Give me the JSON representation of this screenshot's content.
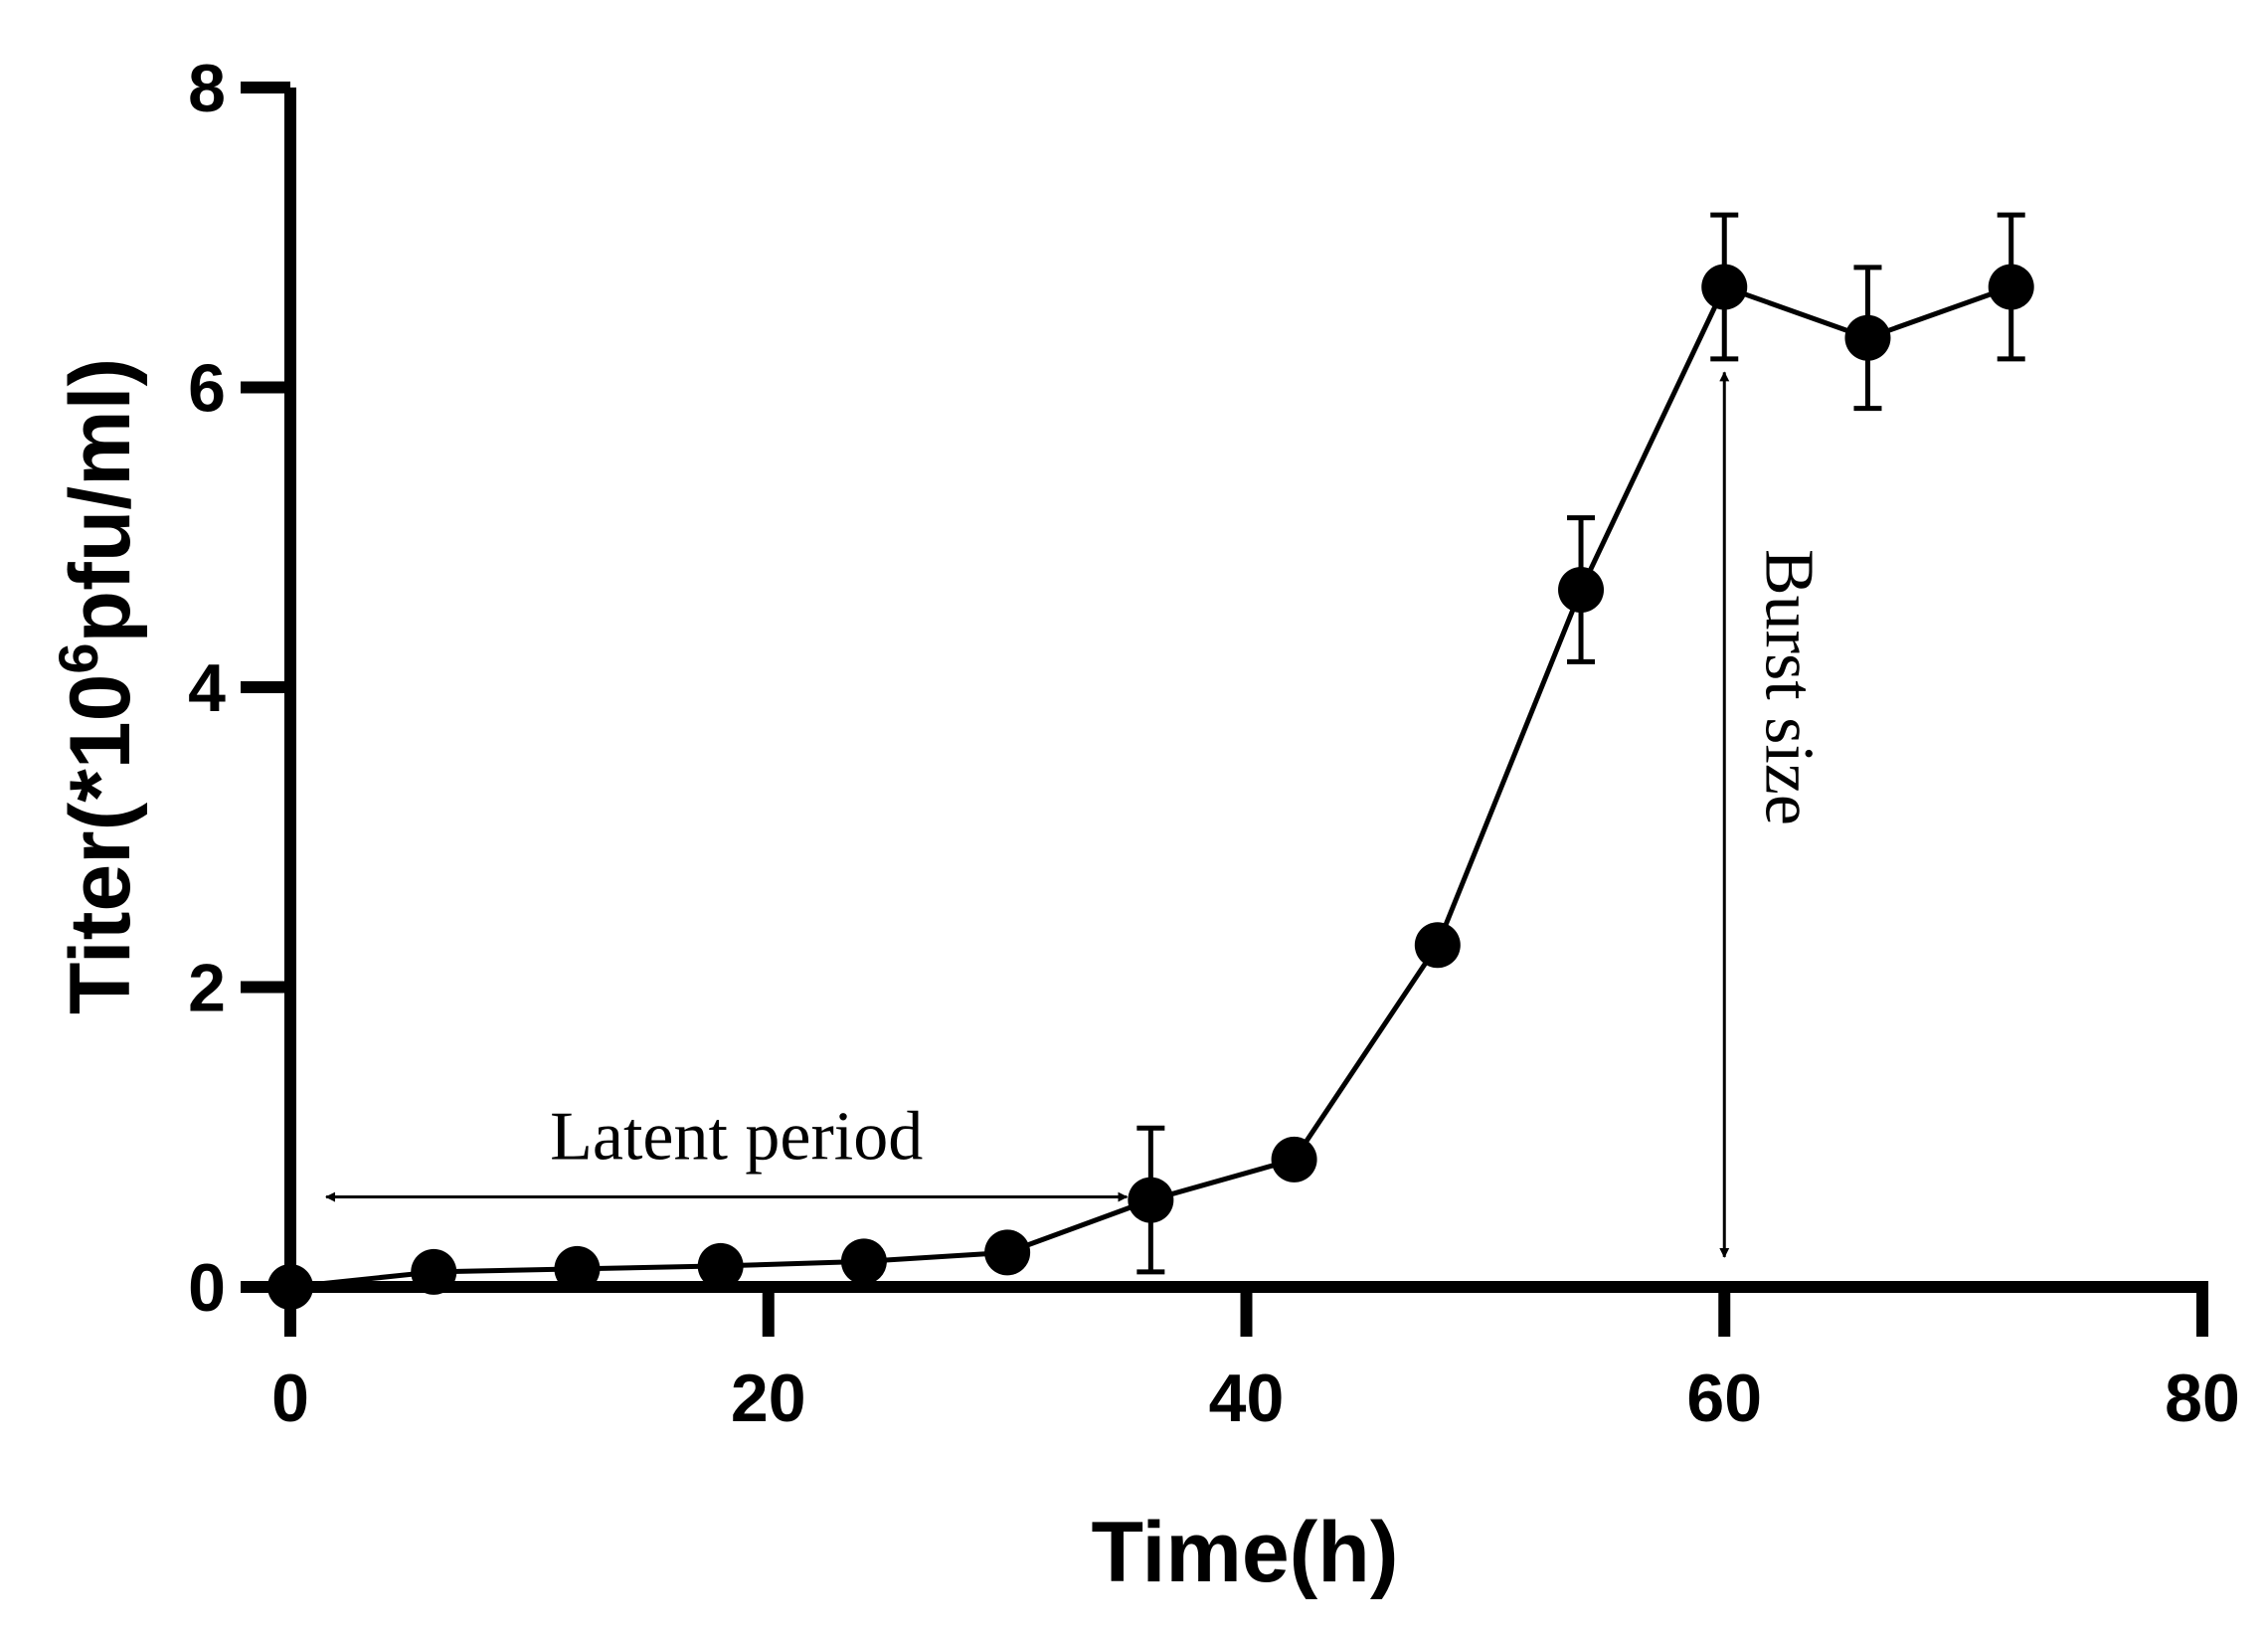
{
  "chart_data": {
    "type": "line",
    "title": "",
    "xlabel": "Time(h)",
    "ylabel": {
      "prefix": "Titer(*10",
      "superscript": "6",
      "suffix": "pfu/ml)"
    },
    "xlim": [
      0,
      80
    ],
    "ylim": [
      0,
      8
    ],
    "xticks": [
      "0",
      "20",
      "40",
      "60",
      "80"
    ],
    "yticks": [
      "0",
      "2",
      "4",
      "6",
      "8"
    ],
    "series": [
      {
        "name": "Titer",
        "x": [
          0,
          6,
          12,
          18,
          24,
          30,
          36,
          42,
          48,
          54,
          60,
          66,
          72
        ],
        "values": [
          0,
          0.1,
          0.12,
          0.14,
          0.17,
          0.23,
          0.58,
          0.85,
          2.28,
          4.65,
          6.67,
          6.33,
          6.67
        ],
        "error": [
          0,
          0,
          0,
          0,
          0,
          0,
          0.48,
          0,
          0,
          0.48,
          0.48,
          0.47,
          0.48
        ]
      }
    ],
    "annotations": [
      {
        "label": "Latent period",
        "orientation": "horizontal",
        "from": [
          1.5,
          0.6
        ],
        "to": [
          35,
          0.6
        ]
      },
      {
        "label": "Burst size",
        "orientation": "vertical",
        "from": [
          60,
          0.2
        ],
        "to": [
          60,
          6.1
        ]
      }
    ],
    "grid": false,
    "legend": "none"
  }
}
